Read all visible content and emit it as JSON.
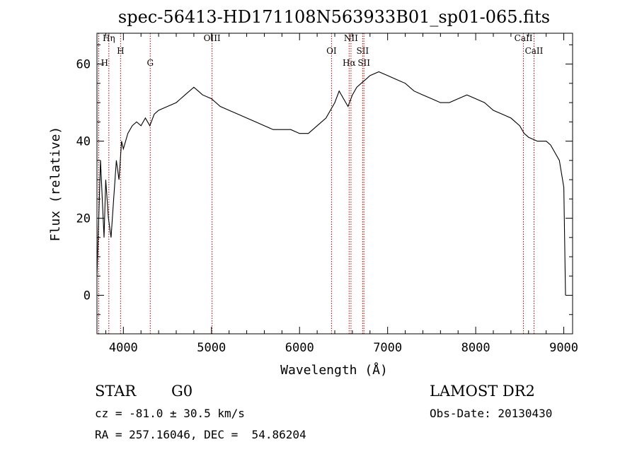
{
  "chart_data": {
    "type": "line",
    "title": "spec-56413-HD171108N563933B01_sp01-065.fits",
    "xlabel": "Wavelength (Å)",
    "ylabel": "Flux (relative)",
    "xlim": [
      3700,
      9100
    ],
    "ylim": [
      -10,
      68
    ],
    "x_ticks": [
      4000,
      5000,
      6000,
      7000,
      8000,
      9000
    ],
    "x_tick_labels": [
      "4000",
      "5000",
      "6000",
      "7000",
      "8000",
      "9000"
    ],
    "y_ticks": [
      0,
      20,
      40,
      60
    ],
    "y_tick_labels": [
      "0",
      "20",
      "40",
      "60"
    ],
    "grid": false,
    "series": [
      {
        "color": "#000000",
        "x": [
          3700,
          3720,
          3740,
          3760,
          3780,
          3800,
          3830,
          3860,
          3890,
          3920,
          3950,
          3980,
          4000,
          4050,
          4100,
          4150,
          4200,
          4250,
          4300,
          4350,
          4400,
          4500,
          4600,
          4700,
          4800,
          4850,
          4900,
          5000,
          5100,
          5200,
          5300,
          5400,
          5500,
          5600,
          5700,
          5800,
          5900,
          6000,
          6100,
          6200,
          6300,
          6400,
          6450,
          6500,
          6550,
          6600,
          6650,
          6700,
          6750,
          6800,
          6900,
          7000,
          7100,
          7200,
          7300,
          7400,
          7500,
          7600,
          7700,
          7800,
          7900,
          8000,
          8100,
          8200,
          8300,
          8400,
          8500,
          8550,
          8600,
          8700,
          8800,
          8850,
          8900,
          8950,
          9000,
          9020
        ],
        "y": [
          5,
          20,
          35,
          25,
          15,
          30,
          20,
          15,
          25,
          35,
          30,
          40,
          38,
          42,
          44,
          45,
          44,
          46,
          44,
          47,
          48,
          49,
          50,
          52,
          54,
          53,
          52,
          51,
          49,
          48,
          47,
          46,
          45,
          44,
          43,
          43,
          43,
          42,
          42,
          44,
          46,
          50,
          53,
          51,
          49,
          52,
          54,
          55,
          56,
          57,
          58,
          57,
          56,
          55,
          53,
          52,
          51,
          50,
          50,
          51,
          52,
          51,
          50,
          48,
          47,
          46,
          44,
          42,
          41,
          40,
          40,
          39,
          37,
          35,
          28,
          0
        ]
      }
    ],
    "lines": [
      {
        "label": "Hη",
        "x": 3835
      },
      {
        "label": "H",
        "x": 3968
      },
      {
        "label": "G",
        "x": 4305
      },
      {
        "label": "OIII",
        "x": 5007
      },
      {
        "label": "OI",
        "x": 6363
      },
      {
        "label": "Hα",
        "x": 6563
      },
      {
        "label": "NII",
        "x": 6584
      },
      {
        "label": "SII",
        "x": 6716
      },
      {
        "label": "SII",
        "x": 6731
      },
      {
        "label": "CaII",
        "x": 8542
      },
      {
        "label": "CaII",
        "x": 8662
      }
    ],
    "left_lines": [
      {
        "label": "H",
        "x": 3720
      }
    ]
  },
  "info": {
    "class": "STAR",
    "subclass": "G0",
    "survey": "LAMOST DR2",
    "cz": "cz = -81.0 ± 30.5 km/s",
    "obs_date": "Obs-Date: 20130430",
    "coords": "RA = 257.16046, DEC =  54.86204"
  }
}
